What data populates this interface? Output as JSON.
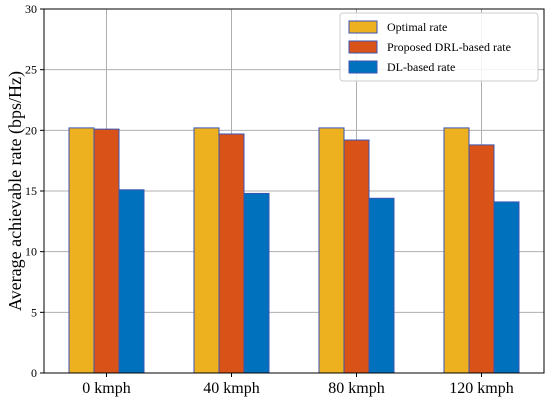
{
  "chart_data": {
    "type": "bar",
    "title": "",
    "xlabel": "",
    "ylabel": "Average achievable rate (bps/Hz)",
    "categories": [
      "0 kmph",
      "40 kmph",
      "80 kmph",
      "120 kmph"
    ],
    "ylim": [
      0,
      30
    ],
    "yticks": [
      0,
      5,
      10,
      15,
      20,
      25,
      30
    ],
    "grid": true,
    "legend_position": "top-right",
    "series": [
      {
        "name": "Optimal rate",
        "color": "#EDB120",
        "values": [
          20.2,
          20.2,
          20.2,
          20.2
        ]
      },
      {
        "name": "Proposed DRL-based rate",
        "color": "#D95319",
        "values": [
          20.1,
          19.7,
          19.2,
          18.8
        ]
      },
      {
        "name": "DL-based rate",
        "color": "#0072BD",
        "values": [
          15.1,
          14.8,
          14.4,
          14.1
        ]
      }
    ]
  }
}
